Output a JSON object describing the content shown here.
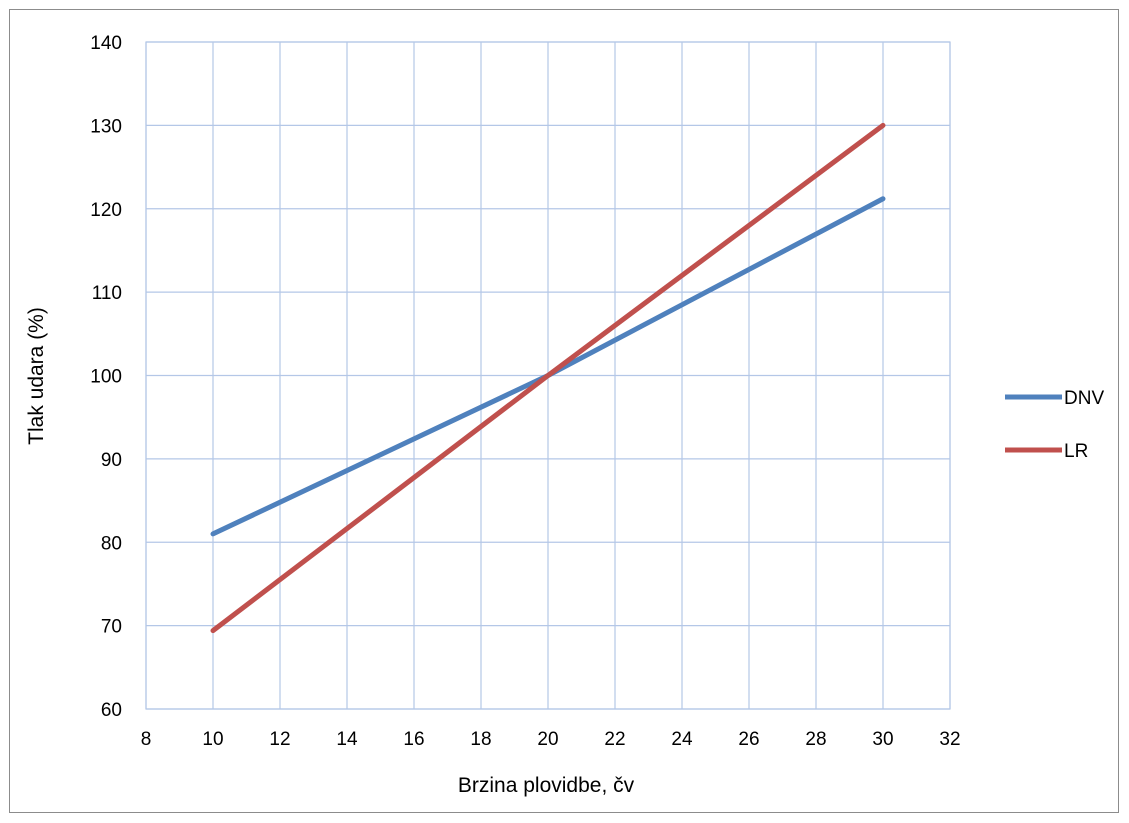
{
  "chart_data": {
    "type": "line",
    "xlabel": "Brzina plovidbe, čv",
    "ylabel": "Tlak udara (%)",
    "xlim": [
      8,
      32
    ],
    "ylim": [
      60,
      140
    ],
    "xticks": [
      8,
      10,
      12,
      14,
      16,
      18,
      20,
      22,
      24,
      26,
      28,
      30,
      32
    ],
    "yticks": [
      60,
      70,
      80,
      90,
      100,
      110,
      120,
      130,
      140
    ],
    "grid": true,
    "legend_position": "right",
    "series": [
      {
        "name": "DNV",
        "color": "#4f81bd",
        "x": [
          10,
          20,
          30
        ],
        "y": [
          81,
          100,
          121.2
        ]
      },
      {
        "name": "LR",
        "color": "#c0504d",
        "x": [
          10,
          20,
          30
        ],
        "y": [
          69.4,
          100,
          130
        ]
      }
    ]
  }
}
